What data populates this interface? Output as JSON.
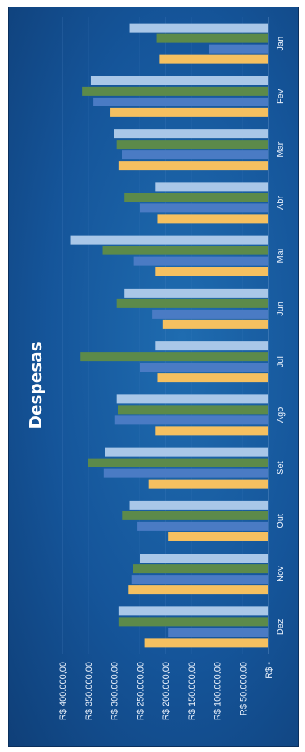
{
  "chart_data": {
    "type": "bar",
    "orientation": "rotated-90-clockwise",
    "title": "Despesas",
    "xlabel": "",
    "ylabel": "",
    "categories": [
      "Jan",
      "Fev",
      "Mar",
      "Abr",
      "Mai",
      "Jun",
      "Jul",
      "Ago",
      "Set",
      "Out",
      "Nov",
      "Dez"
    ],
    "y_ticks": [
      "R$ -",
      "R$ 50.000,00",
      "R$ 100.000,00",
      "R$ 150.000,00",
      "R$ 200.000,00",
      "R$ 250.000,00",
      "R$ 300.000,00",
      "R$ 350.000,00",
      "R$ 400.000,00"
    ],
    "ylim": [
      0,
      400000
    ],
    "grid": true,
    "legend": "none",
    "series": [
      {
        "color": "#f5c060",
        "values": [
          212000,
          307000,
          290000,
          215000,
          220000,
          205000,
          215000,
          220000,
          232000,
          195000,
          272000,
          240000
        ]
      },
      {
        "color": "#4a7bc4",
        "values": [
          115000,
          340000,
          285000,
          250000,
          262000,
          225000,
          250000,
          298000,
          320000,
          255000,
          265000,
          195000
        ]
      },
      {
        "color": "#5c8a4a",
        "values": [
          218000,
          362000,
          295000,
          280000,
          322000,
          295000,
          365000,
          292000,
          350000,
          283000,
          263000,
          290000
        ]
      },
      {
        "color": "#a9c7e8",
        "values": [
          270000,
          345000,
          300000,
          220000,
          385000,
          280000,
          220000,
          295000,
          318000,
          270000,
          250000,
          290000
        ]
      }
    ]
  }
}
